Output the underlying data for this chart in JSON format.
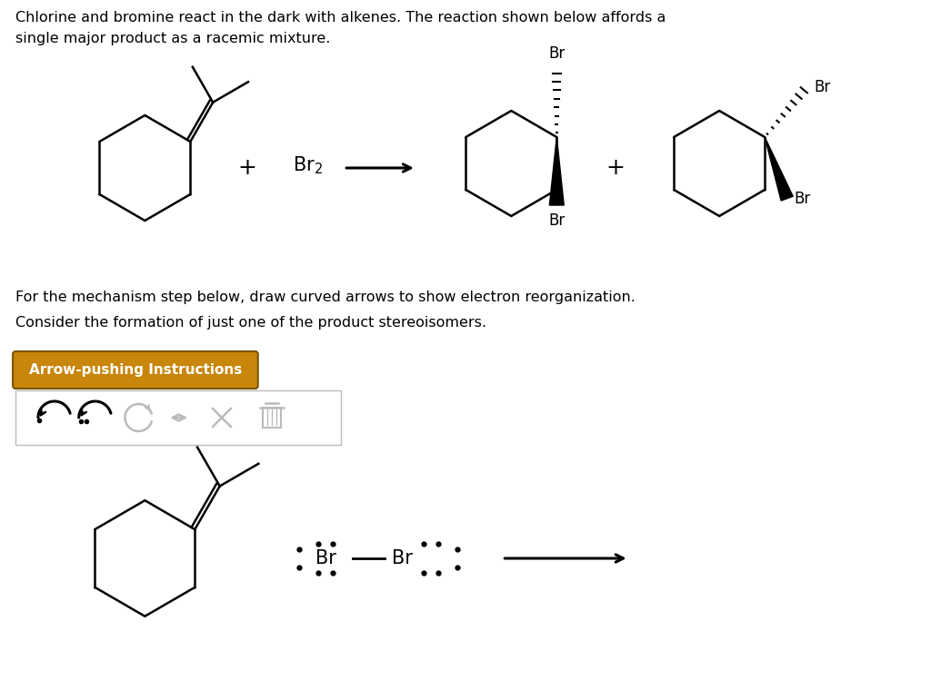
{
  "bg_color": "#ffffff",
  "text_color": "#000000",
  "title_line1": "Chlorine and bromine react in the dark with alkenes. The reaction shown below affords a",
  "title_line2": "single major product as a racemic mixture.",
  "para1_line1": "For the mechanism step below, draw curved arrows to show electron reorganization.",
  "para1_line2": "Consider the formation of just one of the product stereoisomers.",
  "btn_text": "Arrow-pushing Instructions",
  "btn_bg": "#c8860a",
  "btn_border": "#8B6914",
  "btn_text_color": "#ffffff"
}
